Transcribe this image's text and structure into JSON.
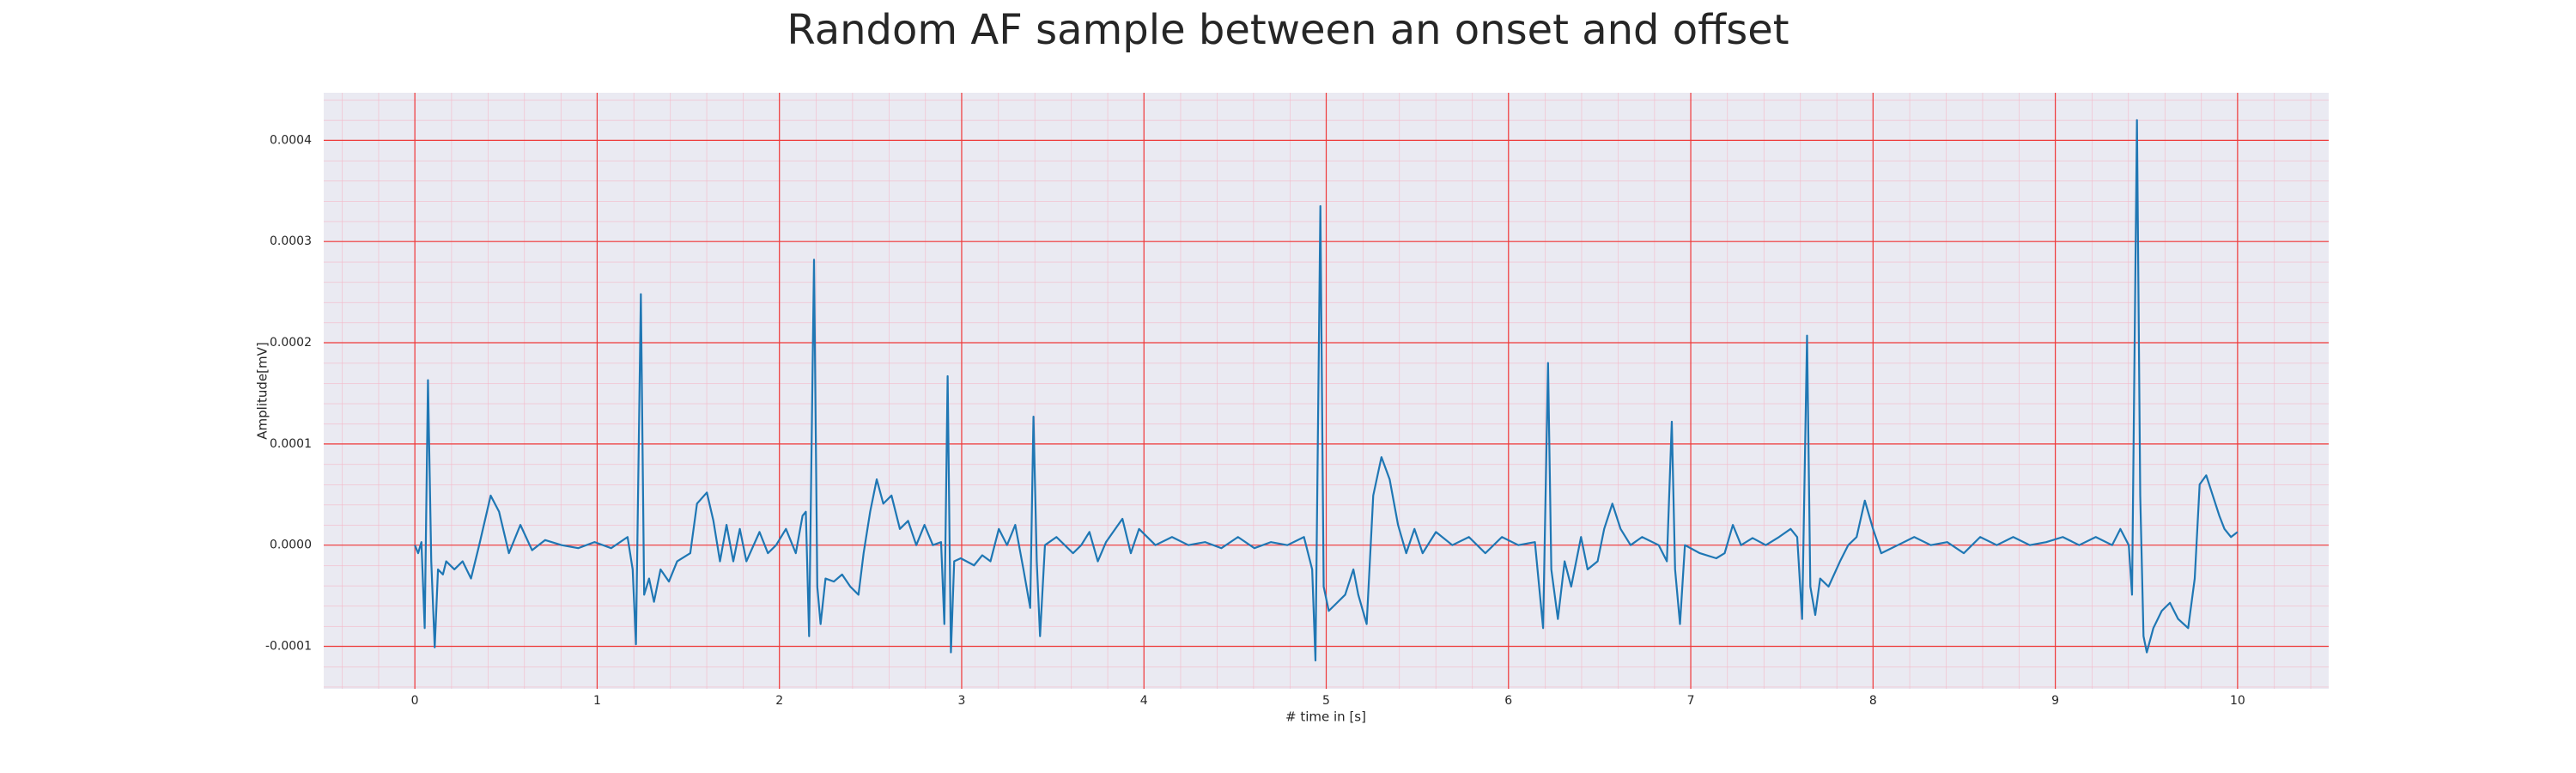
{
  "chart_data": {
    "type": "line",
    "title": "Random AF sample between an onset and offset",
    "x_label": "# time in [s]",
    "y_label": "Amplitude[mV]",
    "xlim": [
      -0.5,
      10.5
    ],
    "ylim": [
      -0.000142,
      0.000447
    ],
    "xticks": [
      0,
      1,
      2,
      3,
      4,
      5,
      6,
      7,
      8,
      9,
      10
    ],
    "yticks": [
      {
        "value": -0.0001,
        "label": "-0.0001"
      },
      {
        "value": 0,
        "label": "0.0000"
      },
      {
        "value": 0.0001,
        "label": "0.0001"
      },
      {
        "value": 0.0002,
        "label": "0.0002"
      },
      {
        "value": 0.0003,
        "label": "0.0003"
      },
      {
        "value": 0.0004,
        "label": "0.0004"
      }
    ],
    "grid": true,
    "series": [
      {
        "color": "#1f77b4",
        "x": [
          0,
          0.018,
          0.036,
          0.054,
          0.072,
          0.09,
          0.109,
          0.127,
          0.154,
          0.172,
          0.217,
          0.262,
          0.308,
          0.353,
          0.416,
          0.462,
          0.516,
          0.579,
          0.643,
          0.715,
          0.805,
          0.896,
          0.986,
          1.077,
          1.167,
          1.195,
          1.213,
          1.24,
          1.258,
          1.285,
          1.312,
          1.348,
          1.394,
          1.439,
          1.511,
          1.548,
          1.602,
          1.638,
          1.674,
          1.71,
          1.747,
          1.783,
          1.819,
          1.891,
          1.937,
          1.982,
          2.036,
          2.09,
          2.127,
          2.145,
          2.163,
          2.19,
          2.208,
          2.226,
          2.253,
          2.299,
          2.344,
          2.389,
          2.434,
          2.462,
          2.498,
          2.534,
          2.57,
          2.615,
          2.661,
          2.706,
          2.751,
          2.796,
          2.842,
          2.887,
          2.905,
          2.923,
          2.941,
          2.959,
          2.995,
          3.068,
          3.113,
          3.158,
          3.204,
          3.249,
          3.294,
          3.339,
          3.376,
          3.394,
          3.412,
          3.43,
          3.457,
          3.52,
          3.611,
          3.656,
          3.701,
          3.747,
          3.792,
          3.882,
          3.928,
          3.973,
          4.063,
          4.154,
          4.244,
          4.335,
          4.425,
          4.516,
          4.606,
          4.697,
          4.787,
          4.878,
          4.923,
          4.941,
          4.968,
          4.986,
          5.014,
          5.059,
          5.104,
          5.149,
          5.176,
          5.222,
          5.258,
          5.303,
          5.348,
          5.394,
          5.439,
          5.484,
          5.529,
          5.602,
          5.692,
          5.783,
          5.873,
          5.964,
          6.054,
          6.145,
          6.19,
          6.217,
          6.235,
          6.271,
          6.308,
          6.344,
          6.398,
          6.434,
          6.489,
          6.525,
          6.57,
          6.615,
          6.67,
          6.733,
          6.824,
          6.869,
          6.896,
          6.914,
          6.941,
          6.968,
          7.05,
          7.14,
          7.186,
          7.231,
          7.276,
          7.339,
          7.412,
          7.484,
          7.548,
          7.584,
          7.611,
          7.638,
          7.656,
          7.683,
          7.71,
          7.756,
          7.819,
          7.864,
          7.91,
          7.955,
          8.0,
          8.045,
          8.136,
          8.226,
          8.317,
          8.407,
          8.498,
          8.588,
          8.679,
          8.769,
          8.86,
          8.95,
          9.041,
          9.131,
          9.222,
          9.312,
          9.357,
          9.403,
          9.421,
          9.448,
          9.466,
          9.484,
          9.502,
          9.538,
          9.584,
          9.629,
          9.674,
          9.729,
          9.765,
          9.792,
          9.828,
          9.864,
          9.9,
          9.928,
          9.964,
          10.0
        ],
        "values": [
          0,
          -8e-06,
          3e-06,
          -8.2e-05,
          0.000163,
          -1.6e-05,
          -0.000101,
          -2.4e-05,
          -2.9e-05,
          -1.6e-05,
          -2.4e-05,
          -1.6e-05,
          -3.3e-05,
          0,
          4.9e-05,
          3.3e-05,
          -8e-06,
          2e-05,
          -5e-06,
          5e-06,
          0,
          -3e-06,
          3e-06,
          -3e-06,
          8e-06,
          -2.4e-05,
          -9.8e-05,
          0.000248,
          -4.9e-05,
          -3.3e-05,
          -5.6e-05,
          -2.4e-05,
          -3.6e-05,
          -1.6e-05,
          -8e-06,
          4.1e-05,
          5.2e-05,
          2.4e-05,
          -1.6e-05,
          2e-05,
          -1.6e-05,
          1.6e-05,
          -1.6e-05,
          1.3e-05,
          -8e-06,
          0,
          1.6e-05,
          -8e-06,
          2.9e-05,
          3.3e-05,
          -9e-05,
          0.000282,
          -4.1e-05,
          -7.8e-05,
          -3.3e-05,
          -3.6e-05,
          -2.9e-05,
          -4.1e-05,
          -4.9e-05,
          -8e-06,
          3.3e-05,
          6.5e-05,
          4.1e-05,
          4.9e-05,
          1.6e-05,
          2.4e-05,
          0,
          2e-05,
          0,
          3e-06,
          -7.8e-05,
          0.000167,
          -0.000106,
          -1.6e-05,
          -1.3e-05,
          -2e-05,
          -1e-05,
          -1.6e-05,
          1.6e-05,
          0,
          2e-05,
          -2.4e-05,
          -6.2e-05,
          0.000127,
          -1.6e-05,
          -9e-05,
          0,
          8e-06,
          -8e-06,
          0,
          1.3e-05,
          -1.6e-05,
          3e-06,
          2.6e-05,
          -8e-06,
          1.6e-05,
          0,
          8e-06,
          0,
          3e-06,
          -3e-06,
          8e-06,
          -3e-06,
          3e-06,
          0,
          8e-06,
          -2.4e-05,
          -0.000114,
          0.000335,
          -4.1e-05,
          -6.5e-05,
          -5.7e-05,
          -4.9e-05,
          -2.4e-05,
          -4.9e-05,
          -7.8e-05,
          4.9e-05,
          8.7e-05,
          6.5e-05,
          2e-05,
          -8e-06,
          1.6e-05,
          -8e-06,
          1.3e-05,
          0,
          8e-06,
          -8e-06,
          8e-06,
          0,
          3e-06,
          -8.2e-05,
          0.00018,
          -2.4e-05,
          -7.3e-05,
          -1.6e-05,
          -4.1e-05,
          8e-06,
          -2.4e-05,
          -1.6e-05,
          1.6e-05,
          4.1e-05,
          1.6e-05,
          0,
          8e-06,
          0,
          -1.6e-05,
          0.000122,
          -2.4e-05,
          -7.8e-05,
          0,
          -8e-06,
          -1.3e-05,
          -8e-06,
          2e-05,
          0,
          7e-06,
          0,
          8e-06,
          1.6e-05,
          8e-06,
          -7.3e-05,
          0.000207,
          -4.1e-05,
          -6.9e-05,
          -3.3e-05,
          -4.1e-05,
          -1.6e-05,
          0,
          8e-06,
          4.4e-05,
          1.6e-05,
          -8e-06,
          0,
          8e-06,
          0,
          3e-06,
          -8e-06,
          8e-06,
          0,
          8e-06,
          0,
          3e-06,
          8e-06,
          0,
          8e-06,
          0,
          1.6e-05,
          0,
          -4.9e-05,
          0.00042,
          4.9e-05,
          -9e-05,
          -0.000106,
          -8.2e-05,
          -6.5e-05,
          -5.7e-05,
          -7.3e-05,
          -8.2e-05,
          -3.3e-05,
          6e-05,
          6.9e-05,
          4.9e-05,
          2.9e-05,
          1.6e-05,
          8e-06,
          1.3e-05
        ]
      }
    ]
  }
}
